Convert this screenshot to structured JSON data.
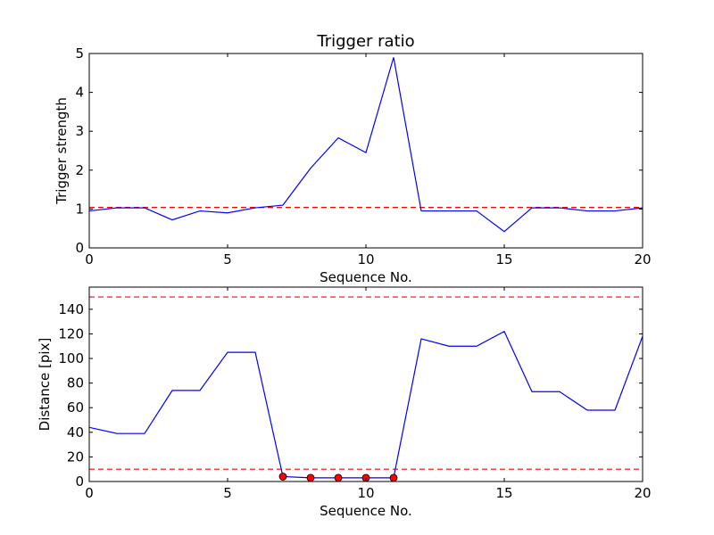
{
  "chart_data": [
    {
      "type": "line",
      "title": "Trigger ratio",
      "xlabel": "Sequence No.",
      "ylabel": "Trigger strength",
      "xlim": [
        0,
        20
      ],
      "ylim": [
        0,
        5
      ],
      "xticks": [
        "0",
        "5",
        "10",
        "15",
        "20"
      ],
      "yticks": [
        "0",
        "1",
        "2",
        "3",
        "4",
        "5"
      ],
      "grid": false,
      "series": [
        {
          "color": "#0000ff",
          "style": "solid",
          "x": [
            0,
            1,
            2,
            3,
            4,
            5,
            6,
            7,
            8,
            9,
            10,
            11,
            12,
            13,
            14,
            15,
            16,
            17,
            18,
            19,
            20
          ],
          "values": [
            0.95,
            1.03,
            1.03,
            0.72,
            0.95,
            0.9,
            1.03,
            1.1,
            2.05,
            2.83,
            2.45,
            4.9,
            0.95,
            0.95,
            0.95,
            0.42,
            1.03,
            1.03,
            0.95,
            0.95,
            1.03
          ]
        }
      ],
      "reference_lines": [
        {
          "y": 1.04,
          "color": "#ff0000",
          "style": "dashed"
        }
      ]
    },
    {
      "type": "line",
      "title": "",
      "xlabel": "Sequence No.",
      "ylabel": "Distance [pix]",
      "xlim": [
        0,
        20
      ],
      "ylim": [
        0,
        158
      ],
      "xticks": [
        "0",
        "5",
        "10",
        "15",
        "20"
      ],
      "yticks": [
        "0",
        "20",
        "40",
        "60",
        "80",
        "100",
        "120",
        "140"
      ],
      "grid": false,
      "series": [
        {
          "color": "#0000ff",
          "style": "solid",
          "x": [
            0,
            1,
            2,
            3,
            4,
            5,
            6,
            7,
            8,
            9,
            10,
            11,
            12,
            13,
            14,
            15,
            16,
            17,
            18,
            19,
            20
          ],
          "values": [
            44,
            39,
            39,
            74,
            74,
            105,
            105,
            4,
            3,
            3,
            3,
            3,
            116,
            110,
            110,
            122,
            73,
            73,
            58,
            58,
            118
          ]
        }
      ],
      "markers": {
        "color": "#ff0000",
        "x": [
          7,
          8,
          9,
          10,
          11
        ],
        "values": [
          4,
          3,
          3,
          3,
          3
        ]
      },
      "reference_lines": [
        {
          "y": 150,
          "color": "#ff0000",
          "style": "dashed"
        },
        {
          "y": 10,
          "color": "#ff0000",
          "style": "dashed"
        }
      ]
    }
  ]
}
